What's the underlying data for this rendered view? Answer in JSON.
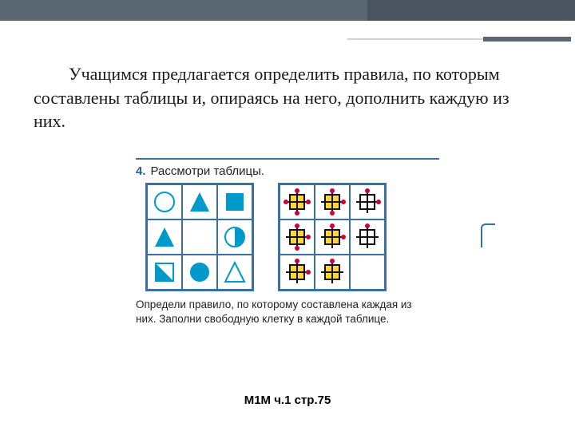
{
  "colors": {
    "header": "#5a6670",
    "accent": "#3a6ea5",
    "shape_blue": "#0099cc",
    "shape_stroke": "#0099cc",
    "yellow": "#ffd633",
    "red": "#cc0033",
    "black": "#111111",
    "text": "#1a1a1a"
  },
  "main_text": "Учащимся предлагается определить правила, по которым составлены таблицы и, опираясь на него, дополнить каждую из них.",
  "exercise": {
    "number": "4.",
    "title": "Рассмотри таблицы.",
    "caption": "Определи правило, по которому составлена каждая из них. Заполни свободную клетку в каждой таблице."
  },
  "grid1": {
    "type": "shape-grid",
    "cells": [
      {
        "shape": "circle",
        "fill": "none"
      },
      {
        "shape": "triangle",
        "fill": "full"
      },
      {
        "shape": "square",
        "fill": "full"
      },
      {
        "shape": "triangle",
        "fill": "full"
      },
      {
        "shape": "blank"
      },
      {
        "shape": "circle",
        "fill": "half"
      },
      {
        "shape": "square",
        "fill": "half"
      },
      {
        "shape": "circle",
        "fill": "full"
      },
      {
        "shape": "triangle",
        "fill": "none"
      }
    ]
  },
  "grid2": {
    "type": "dot-grid",
    "cells": [
      {
        "fill": true,
        "dots": 4,
        "stroke": "black"
      },
      {
        "fill": true,
        "dots": 3,
        "stroke": "black"
      },
      {
        "fill": false,
        "dots": 2,
        "stroke": "black"
      },
      {
        "fill": true,
        "dots": 3,
        "stroke": "black"
      },
      {
        "fill": true,
        "dots": 2,
        "stroke": "black"
      },
      {
        "fill": false,
        "dots": 1,
        "stroke": "black"
      },
      {
        "fill": true,
        "dots": 2,
        "stroke": "black"
      },
      {
        "fill": true,
        "dots": 1,
        "stroke": "black"
      },
      {
        "fill": false,
        "dots": 0,
        "stroke": "none",
        "empty": true
      }
    ]
  },
  "footer": "М1М ч.1 стр.75"
}
